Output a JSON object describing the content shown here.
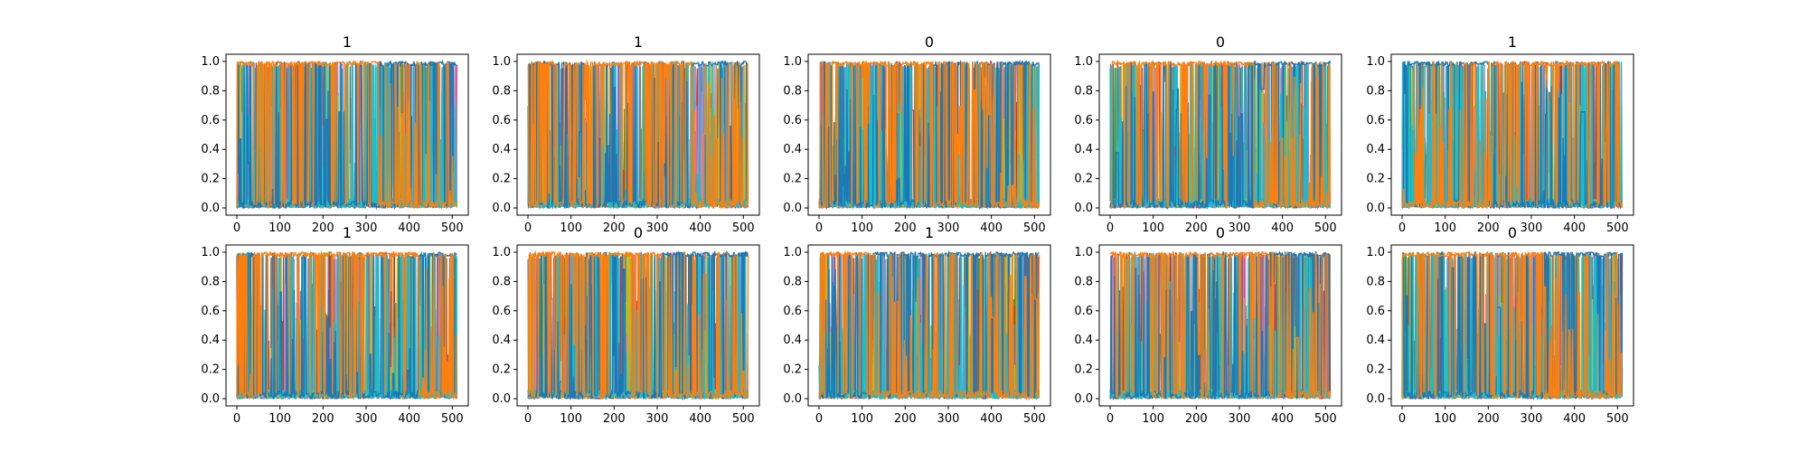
{
  "figure": {
    "grid": "2 rows x 5 columns of line-plot panels",
    "series_palette": [
      "#1f77b4",
      "#ff7f0e",
      "#2ca02c",
      "#d62728",
      "#9467bd",
      "#8c564b",
      "#e377c2",
      "#7f7f7f",
      "#bcbd22",
      "#17becf"
    ],
    "dominant_colors": {
      "blue": "#1f77b4",
      "orange": "#ff7f0e",
      "cyan": "#17becf"
    }
  },
  "chart_data": [
    {
      "type": "line",
      "title": "1",
      "xlim": [
        0,
        512
      ],
      "ylim": [
        0.0,
        1.0
      ],
      "xticks": [
        0,
        100,
        200,
        300,
        400,
        500
      ],
      "yticks": [
        0.0,
        0.2,
        0.4,
        0.6,
        0.8,
        1.0
      ],
      "grid": false,
      "legend": "none",
      "orange_dominant_range": [
        0,
        330
      ],
      "blue_dominant_range": [
        330,
        512
      ]
    },
    {
      "type": "line",
      "title": "1",
      "xlim": [
        0,
        512
      ],
      "ylim": [
        0.0,
        1.0
      ],
      "xticks": [
        0,
        100,
        200,
        300,
        400,
        500
      ],
      "yticks": [
        0.0,
        0.2,
        0.4,
        0.6,
        0.8,
        1.0
      ],
      "grid": false,
      "legend": "none",
      "orange_dominant_range": [
        150,
        380
      ],
      "blue_dominant_range": [
        380,
        512
      ]
    },
    {
      "type": "line",
      "title": "0",
      "xlim": [
        0,
        512
      ],
      "ylim": [
        0.0,
        1.0
      ],
      "xticks": [
        0,
        100,
        200,
        300,
        400,
        500
      ],
      "yticks": [
        0.0,
        0.2,
        0.4,
        0.6,
        0.8,
        1.0
      ],
      "grid": false,
      "legend": "none",
      "orange_dominant_range": [
        0,
        260
      ],
      "blue_dominant_range": [
        420,
        512
      ]
    },
    {
      "type": "line",
      "title": "0",
      "xlim": [
        0,
        512
      ],
      "ylim": [
        0.0,
        1.0
      ],
      "xticks": [
        0,
        100,
        200,
        300,
        400,
        500
      ],
      "yticks": [
        0.0,
        0.2,
        0.4,
        0.6,
        0.8,
        1.0
      ],
      "grid": false,
      "legend": "none",
      "orange_dominant_range": [
        0,
        330
      ],
      "blue_dominant_range": [
        330,
        512
      ]
    },
    {
      "type": "line",
      "title": "1",
      "xlim": [
        0,
        512
      ],
      "ylim": [
        0.0,
        1.0
      ],
      "xticks": [
        0,
        100,
        200,
        300,
        400,
        500
      ],
      "yticks": [
        0.0,
        0.2,
        0.4,
        0.6,
        0.8,
        1.0
      ],
      "grid": false,
      "legend": "none",
      "orange_dominant_range": [
        210,
        470
      ],
      "blue_dominant_range": [
        0,
        200
      ]
    },
    {
      "type": "line",
      "title": "1",
      "xlim": [
        0,
        512
      ],
      "ylim": [
        0.0,
        1.0
      ],
      "xticks": [
        0,
        100,
        200,
        300,
        400,
        500
      ],
      "yticks": [
        0.0,
        0.2,
        0.4,
        0.6,
        0.8,
        1.0
      ],
      "grid": false,
      "legend": "none",
      "orange_dominant_range": [
        60,
        420
      ],
      "blue_dominant_range": [
        420,
        512
      ]
    },
    {
      "type": "line",
      "title": "0",
      "xlim": [
        0,
        512
      ],
      "ylim": [
        0.0,
        1.0
      ],
      "xticks": [
        0,
        100,
        200,
        300,
        400,
        500
      ],
      "yticks": [
        0.0,
        0.2,
        0.4,
        0.6,
        0.8,
        1.0
      ],
      "grid": false,
      "legend": "none",
      "orange_dominant_range": [
        0,
        310
      ],
      "blue_dominant_range": [
        310,
        512
      ]
    },
    {
      "type": "line",
      "title": "1",
      "xlim": [
        0,
        512
      ],
      "ylim": [
        0.0,
        1.0
      ],
      "xticks": [
        0,
        100,
        200,
        300,
        400,
        500
      ],
      "yticks": [
        0.0,
        0.2,
        0.4,
        0.6,
        0.8,
        1.0
      ],
      "grid": false,
      "legend": "none",
      "orange_dominant_range": [
        0,
        120
      ],
      "blue_dominant_range": [
        120,
        512
      ]
    },
    {
      "type": "line",
      "title": "0",
      "xlim": [
        0,
        512
      ],
      "ylim": [
        0.0,
        1.0
      ],
      "xticks": [
        0,
        100,
        200,
        300,
        400,
        500
      ],
      "yticks": [
        0.0,
        0.2,
        0.4,
        0.6,
        0.8,
        1.0
      ],
      "grid": false,
      "legend": "none",
      "orange_dominant_range": [
        0,
        370
      ],
      "blue_dominant_range": [
        370,
        512
      ]
    },
    {
      "type": "line",
      "title": "0",
      "xlim": [
        0,
        512
      ],
      "ylim": [
        0.0,
        1.0
      ],
      "xticks": [
        0,
        100,
        200,
        300,
        400,
        500
      ],
      "yticks": [
        0.0,
        0.2,
        0.4,
        0.6,
        0.8,
        1.0
      ],
      "grid": false,
      "legend": "none",
      "orange_dominant_range": [
        0,
        330
      ],
      "blue_dominant_range": [
        330,
        512
      ]
    }
  ]
}
